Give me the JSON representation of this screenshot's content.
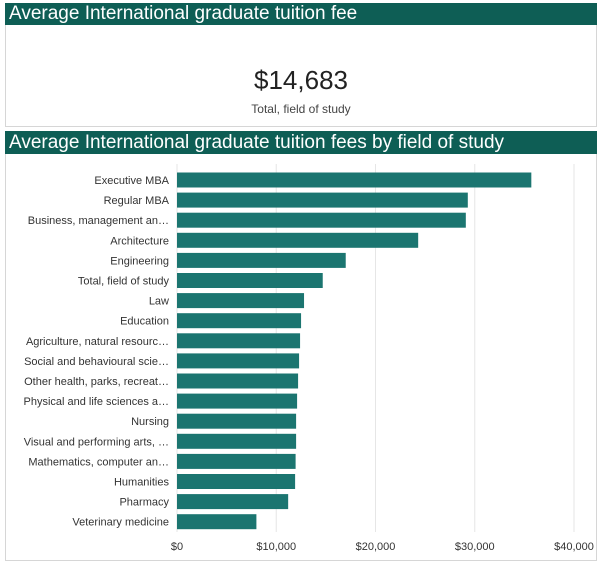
{
  "kpi": {
    "title": "Average International graduate tuition fee",
    "value": "$14,683",
    "label": "Total, field of study"
  },
  "chart_title": "Average International graduate tuition fees by field of study",
  "colors": {
    "header_bg": "#0e5e55",
    "bar": "#1b7570",
    "grid": "#e6e6e6"
  },
  "chart_data": {
    "type": "bar",
    "orientation": "horizontal",
    "title": "Average International graduate tuition fees by field of study",
    "xlabel": "",
    "ylabel": "",
    "xlim": [
      0,
      40000
    ],
    "grid": true,
    "tick_values": [
      0,
      10000,
      20000,
      30000,
      40000
    ],
    "tick_labels": [
      "$0",
      "$10,000",
      "$20,000",
      "$30,000",
      "$40,000"
    ],
    "categories": [
      "Executive MBA",
      "Regular MBA",
      "Business, management an…",
      "Architecture",
      "Engineering",
      "Total, field of study",
      "Law",
      "Education",
      "Agriculture, natural resourc…",
      "Social and behavioural scie…",
      "Other health, parks, recreat…",
      "Physical and life sciences a…",
      "Nursing",
      "Visual and performing arts, …",
      "Mathematics, computer an…",
      "Humanities",
      "Pharmacy",
      "Veterinary medicine"
    ],
    "values": [
      35700,
      29300,
      29100,
      24300,
      17000,
      14683,
      12800,
      12500,
      12400,
      12300,
      12200,
      12100,
      12000,
      12000,
      11950,
      11900,
      11200,
      8000
    ]
  }
}
